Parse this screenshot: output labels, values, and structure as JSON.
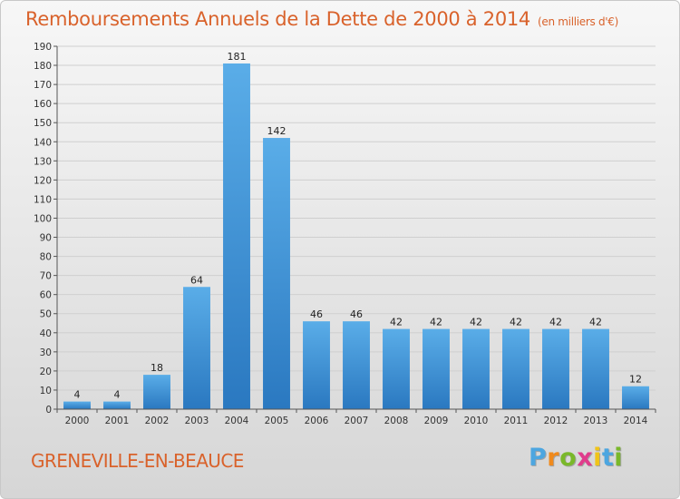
{
  "header": {
    "title": "Remboursements Annuels de la Dette de 2000 à 2014",
    "unit": "(en milliers d'€)"
  },
  "footer": {
    "city": "GRENEVILLE-EN-BEAUCE",
    "logo": {
      "letters": [
        "P",
        "r",
        "o",
        "x",
        "i",
        "t",
        "i"
      ]
    }
  },
  "colors": {
    "title": "#d9622b",
    "bar_top": "#5aade8",
    "bar_bottom": "#2a78c0",
    "logo_letters": [
      "#4da6e0",
      "#f08a1c",
      "#7ab82a",
      "#e03c8c",
      "#f0c419",
      "#4da6e0",
      "#7ab82a"
    ]
  },
  "chart_data": {
    "type": "bar",
    "title": "Remboursements Annuels de la Dette de 2000 à 2014",
    "xlabel": "",
    "ylabel": "",
    "categories": [
      "2000",
      "2001",
      "2002",
      "2003",
      "2004",
      "2005",
      "2006",
      "2007",
      "2008",
      "2009",
      "2010",
      "2011",
      "2012",
      "2013",
      "2014"
    ],
    "values": [
      4,
      4,
      18,
      64,
      181,
      142,
      46,
      46,
      42,
      42,
      42,
      42,
      42,
      42,
      12
    ],
    "ylim": [
      0,
      190
    ],
    "yticks": [
      0,
      10,
      20,
      30,
      40,
      50,
      60,
      70,
      80,
      90,
      100,
      110,
      120,
      130,
      140,
      150,
      160,
      170,
      180,
      190
    ],
    "grid": true,
    "legend": "none"
  }
}
